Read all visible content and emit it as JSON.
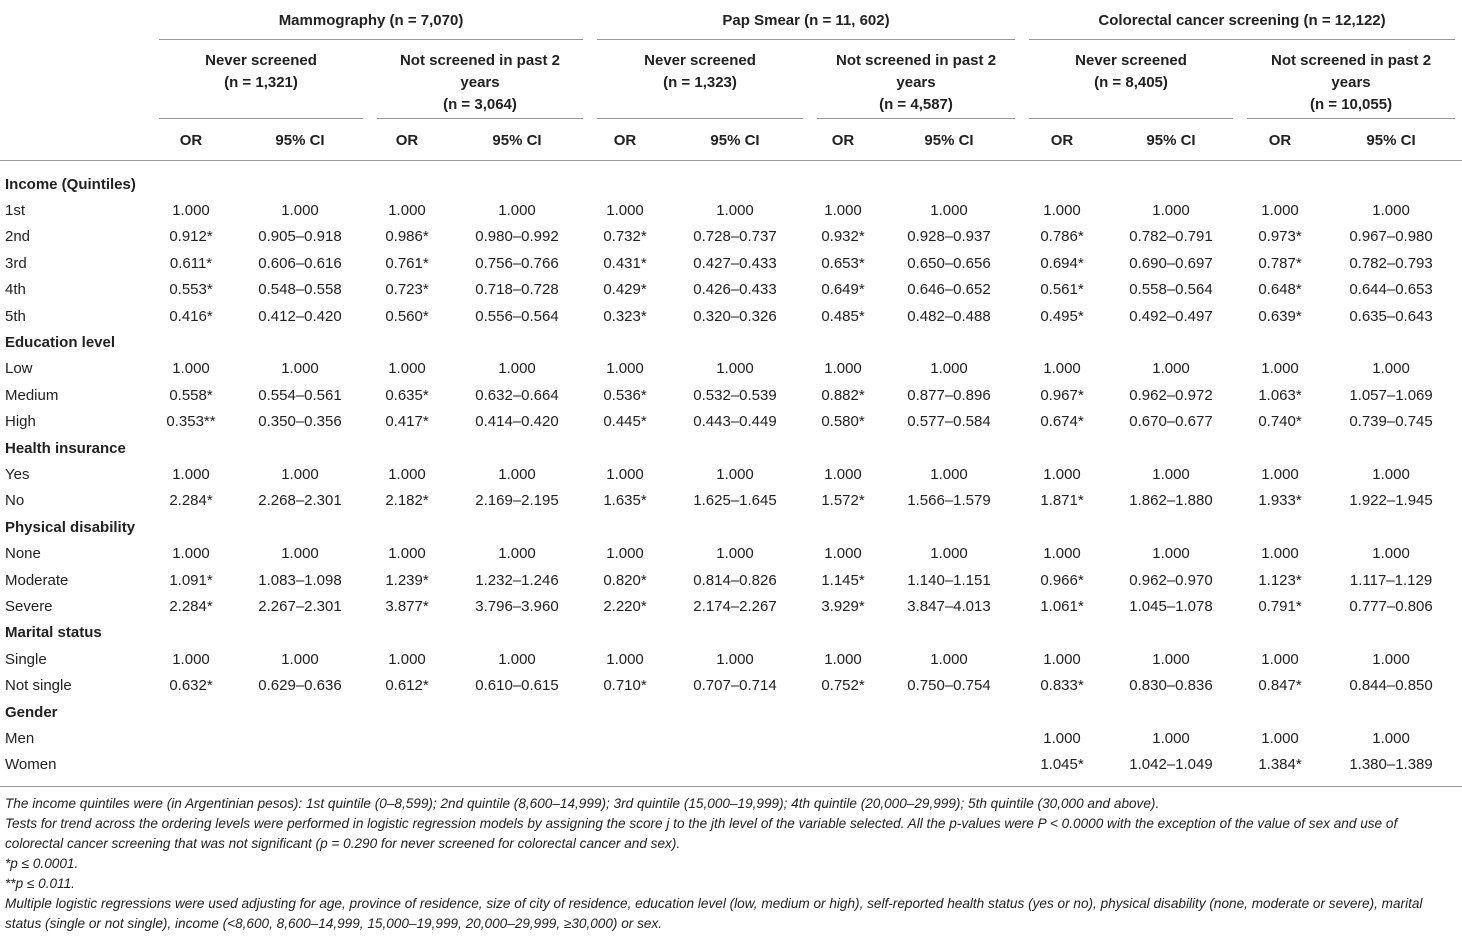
{
  "table": {
    "groups": [
      "Mammography (n = 7,070)",
      "Pap Smear (n = 11, 602)",
      "Colorectal cancer screening (n = 12,122)"
    ],
    "subgroups": [
      [
        "Never screened",
        "(n = 1,321)"
      ],
      [
        "Not screened in past 2",
        "years",
        "(n = 3,064)"
      ],
      [
        "Never screened",
        "(n = 1,323)"
      ],
      [
        "Not screened in past 2",
        "years",
        "(n = 4,587)"
      ],
      [
        "Never screened",
        "(n = 8,405)"
      ],
      [
        "Not screened in past 2",
        "years",
        "(n = 10,055)"
      ]
    ],
    "columns": [
      "OR",
      "95% CI",
      "OR",
      "95% CI",
      "OR",
      "95% CI",
      "OR",
      "95% CI",
      "OR",
      "95% CI",
      "OR",
      "95% CI"
    ],
    "sections": [
      {
        "label": "Income (Quintiles)",
        "rows": [
          {
            "label": "1st",
            "cells": [
              "1.000",
              "1.000",
              "1.000",
              "1.000",
              "1.000",
              "1.000",
              "1.000",
              "1.000",
              "1.000",
              "1.000",
              "1.000",
              "1.000"
            ]
          },
          {
            "label": "2nd",
            "cells": [
              "0.912*",
              "0.905–0.918",
              "0.986*",
              "0.980–0.992",
              "0.732*",
              "0.728–0.737",
              "0.932*",
              "0.928–0.937",
              "0.786*",
              "0.782–0.791",
              "0.973*",
              "0.967–0.980"
            ]
          },
          {
            "label": "3rd",
            "cells": [
              "0.611*",
              "0.606–0.616",
              "0.761*",
              "0.756–0.766",
              "0.431*",
              "0.427–0.433",
              "0.653*",
              "0.650–0.656",
              "0.694*",
              "0.690–0.697",
              "0.787*",
              "0.782–0.793"
            ]
          },
          {
            "label": "4th",
            "cells": [
              "0.553*",
              "0.548–0.558",
              "0.723*",
              "0.718–0.728",
              "0.429*",
              "0.426–0.433",
              "0.649*",
              "0.646–0.652",
              "0.561*",
              "0.558–0.564",
              "0.648*",
              "0.644–0.653"
            ]
          },
          {
            "label": "5th",
            "cells": [
              "0.416*",
              "0.412–0.420",
              "0.560*",
              "0.556–0.564",
              "0.323*",
              "0.320–0.326",
              "0.485*",
              "0.482–0.488",
              "0.495*",
              "0.492–0.497",
              "0.639*",
              "0.635–0.643"
            ]
          }
        ]
      },
      {
        "label": "Education level",
        "rows": [
          {
            "label": "Low",
            "cells": [
              "1.000",
              "1.000",
              "1.000",
              "1.000",
              "1.000",
              "1.000",
              "1.000",
              "1.000",
              "1.000",
              "1.000",
              "1.000",
              "1.000"
            ]
          },
          {
            "label": "Medium",
            "cells": [
              "0.558*",
              "0.554–0.561",
              "0.635*",
              "0.632–0.664",
              "0.536*",
              "0.532–0.539",
              "0.882*",
              "0.877–0.896",
              "0.967*",
              "0.962–0.972",
              "1.063*",
              "1.057–1.069"
            ]
          },
          {
            "label": "High",
            "cells": [
              "0.353**",
              "0.350–0.356",
              "0.417*",
              "0.414–0.420",
              "0.445*",
              "0.443–0.449",
              "0.580*",
              "0.577–0.584",
              "0.674*",
              "0.670–0.677",
              "0.740*",
              "0.739–0.745"
            ]
          }
        ]
      },
      {
        "label": "Health insurance",
        "rows": [
          {
            "label": "Yes",
            "cells": [
              "1.000",
              "1.000",
              "1.000",
              "1.000",
              "1.000",
              "1.000",
              "1.000",
              "1.000",
              "1.000",
              "1.000",
              "1.000",
              "1.000"
            ]
          },
          {
            "label": "No",
            "cells": [
              "2.284*",
              "2.268–2.301",
              "2.182*",
              "2.169–2.195",
              "1.635*",
              "1.625–1.645",
              "1.572*",
              "1.566–1.579",
              "1.871*",
              "1.862–1.880",
              "1.933*",
              "1.922–1.945"
            ]
          }
        ]
      },
      {
        "label": "Physical disability",
        "rows": [
          {
            "label": "None",
            "cells": [
              "1.000",
              "1.000",
              "1.000",
              "1.000",
              "1.000",
              "1.000",
              "1.000",
              "1.000",
              "1.000",
              "1.000",
              "1.000",
              "1.000"
            ]
          },
          {
            "label": "Moderate",
            "cells": [
              "1.091*",
              "1.083–1.098",
              "1.239*",
              "1.232–1.246",
              "0.820*",
              "0.814–0.826",
              "1.145*",
              "1.140–1.151",
              "0.966*",
              "0.962–0.970",
              "1.123*",
              "1.117–1.129"
            ]
          },
          {
            "label": "Severe",
            "cells": [
              "2.284*",
              "2.267–2.301",
              "3.877*",
              "3.796–3.960",
              "2.220*",
              "2.174–2.267",
              "3.929*",
              "3.847–4.013",
              "1.061*",
              "1.045–1.078",
              "0.791*",
              "0.777–0.806"
            ]
          }
        ]
      },
      {
        "label": "Marital status",
        "rows": [
          {
            "label": "Single",
            "cells": [
              "1.000",
              "1.000",
              "1.000",
              "1.000",
              "1.000",
              "1.000",
              "1.000",
              "1.000",
              "1.000",
              "1.000",
              "1.000",
              "1.000"
            ]
          },
          {
            "label": "Not single",
            "cells": [
              "0.632*",
              "0.629–0.636",
              "0.612*",
              "0.610–0.615",
              "0.710*",
              "0.707–0.714",
              "0.752*",
              "0.750–0.754",
              "0.833*",
              "0.830–0.836",
              "0.847*",
              "0.844–0.850"
            ]
          }
        ]
      },
      {
        "label": "Gender",
        "rows": [
          {
            "label": "Men",
            "cells": [
              null,
              null,
              null,
              null,
              null,
              null,
              null,
              null,
              "1.000",
              "1.000",
              "1.000",
              "1.000"
            ]
          },
          {
            "label": "Women",
            "cells": [
              null,
              null,
              null,
              null,
              null,
              null,
              null,
              null,
              "1.045*",
              "1.042–1.049",
              "1.384*",
              "1.380–1.389"
            ]
          }
        ]
      }
    ],
    "footnotes": [
      "The income quintiles were (in Argentinian pesos): 1st quintile (0–8,599); 2nd quintile (8,600–14,999); 3rd quintile (15,000–19,999); 4th quintile (20,000–29,999); 5th quintile (30,000 and above).",
      "Tests for trend across the ordering levels were performed in logistic regression models by assigning the score j to the jth level of the variable selected. All the p-values were P < 0.0000 with the exception of the value of sex and use of colorectal cancer screening that was not significant (p = 0.290 for never screened for colorectal cancer and sex).",
      "*p ≤ 0.0001.",
      "**p ≤ 0.011.",
      "Multiple logistic regressions were used adjusting for age, province of residence, size of city of residence, education level (low, medium or high), self-reported health status (yes or no), physical disability (none, moderate or severe), marital status (single or not single), income (<8,600, 8,600–14,999, 15,000–19,999, 20,000–29,999, ≥30,000) or sex."
    ]
  }
}
